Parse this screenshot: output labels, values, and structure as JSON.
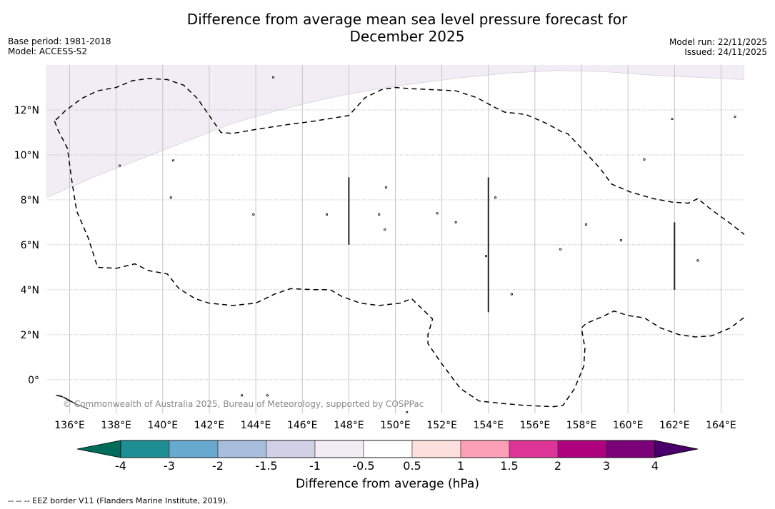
{
  "header": {
    "title_line1": "Difference from average mean sea level pressure forecast for",
    "title_line2": "December 2025",
    "base_period": "Base period: 1981-2018",
    "model": "Model: ACCESS-S2",
    "model_run": "Model run: 22/11/2025",
    "issued": "Issued: 24/11/2025"
  },
  "map": {
    "extent": {
      "lon_min": 135.0,
      "lon_max": 165.0,
      "lat_min": -1.5,
      "lat_max": 14.0
    },
    "lon_ticks": [
      136,
      138,
      140,
      142,
      144,
      146,
      148,
      150,
      152,
      154,
      156,
      158,
      160,
      162,
      164
    ],
    "lon_tick_labels": [
      "136°E",
      "138°E",
      "140°E",
      "142°E",
      "144°E",
      "146°E",
      "148°E",
      "150°E",
      "152°E",
      "154°E",
      "156°E",
      "158°E",
      "160°E",
      "162°E",
      "164°E"
    ],
    "lat_ticks": [
      0,
      2,
      4,
      6,
      8,
      10,
      12
    ],
    "lat_tick_labels": [
      "0°",
      "2°N",
      "4°N",
      "6°N",
      "8°N",
      "10°N",
      "12°N"
    ],
    "shaded_region": {
      "category": "-1 to -0.5",
      "color": "#f2edf4",
      "boundary_lonlat": [
        [
          135.0,
          8.1
        ],
        [
          137.0,
          9.0
        ],
        [
          139.0,
          9.8
        ],
        [
          141.0,
          10.6
        ],
        [
          143.0,
          11.4
        ],
        [
          145.0,
          12.0
        ],
        [
          147.0,
          12.5
        ],
        [
          149.0,
          12.9
        ],
        [
          151.0,
          13.2
        ],
        [
          153.0,
          13.45
        ],
        [
          155.0,
          13.65
        ],
        [
          157.0,
          13.75
        ],
        [
          159.0,
          13.7
        ],
        [
          161.0,
          13.55
        ],
        [
          163.0,
          13.45
        ],
        [
          165.0,
          13.35
        ]
      ]
    },
    "eez_border_lonlat": [
      [
        135.35,
        11.5
      ],
      [
        135.5,
        11.1
      ],
      [
        135.9,
        10.3
      ],
      [
        136.1,
        8.8
      ],
      [
        136.3,
        7.5
      ],
      [
        136.8,
        6.3
      ],
      [
        137.2,
        5.0
      ],
      [
        138.0,
        4.95
      ],
      [
        138.8,
        5.15
      ],
      [
        139.4,
        4.85
      ],
      [
        140.2,
        4.7
      ],
      [
        140.7,
        4.05
      ],
      [
        141.4,
        3.6
      ],
      [
        142.0,
        3.4
      ],
      [
        143.0,
        3.3
      ],
      [
        144.0,
        3.4
      ],
      [
        144.8,
        3.8
      ],
      [
        145.5,
        4.05
      ],
      [
        146.5,
        4.0
      ],
      [
        147.2,
        4.0
      ],
      [
        147.7,
        3.7
      ],
      [
        148.5,
        3.4
      ],
      [
        149.3,
        3.3
      ],
      [
        150.2,
        3.4
      ],
      [
        150.7,
        3.6
      ],
      [
        151.6,
        2.7
      ],
      [
        151.4,
        2.0
      ],
      [
        151.4,
        1.6
      ],
      [
        152.0,
        0.7
      ],
      [
        152.8,
        -0.4
      ],
      [
        153.6,
        -0.95
      ],
      [
        154.5,
        -1.05
      ],
      [
        155.6,
        -1.15
      ],
      [
        156.8,
        -1.2
      ],
      [
        157.2,
        -1.15
      ],
      [
        157.7,
        -0.4
      ],
      [
        158.1,
        0.6
      ],
      [
        158.15,
        1.4
      ],
      [
        158.0,
        2.3
      ],
      [
        158.2,
        2.5
      ],
      [
        158.9,
        2.8
      ],
      [
        159.4,
        3.05
      ],
      [
        160.0,
        2.85
      ],
      [
        160.7,
        2.75
      ],
      [
        161.4,
        2.3
      ],
      [
        162.2,
        2.0
      ],
      [
        162.9,
        1.9
      ],
      [
        163.6,
        1.95
      ],
      [
        164.4,
        2.3
      ],
      [
        165.1,
        2.85
      ],
      [
        165.45,
        3.25
      ],
      [
        165.35,
        5.0
      ],
      [
        165.2,
        6.3
      ],
      [
        164.4,
        6.95
      ],
      [
        163.6,
        7.55
      ],
      [
        163.0,
        8.05
      ],
      [
        162.6,
        7.85
      ],
      [
        161.9,
        7.9
      ],
      [
        161.1,
        8.05
      ],
      [
        160.1,
        8.35
      ],
      [
        159.3,
        8.7
      ],
      [
        158.8,
        9.4
      ],
      [
        158.0,
        10.3
      ],
      [
        157.4,
        10.95
      ],
      [
        157.2,
        11.0
      ],
      [
        156.5,
        11.4
      ],
      [
        155.6,
        11.8
      ],
      [
        154.7,
        11.9
      ],
      [
        154.3,
        12.1
      ],
      [
        153.5,
        12.55
      ],
      [
        152.6,
        12.85
      ],
      [
        151.6,
        12.9
      ],
      [
        150.6,
        12.95
      ],
      [
        150.0,
        13.0
      ],
      [
        149.4,
        12.9
      ],
      [
        148.7,
        12.55
      ],
      [
        148.0,
        11.75
      ],
      [
        147.7,
        11.7
      ],
      [
        146.5,
        11.5
      ],
      [
        145.4,
        11.35
      ],
      [
        144.1,
        11.15
      ],
      [
        143.0,
        10.95
      ],
      [
        142.5,
        11.0
      ],
      [
        142.1,
        11.6
      ],
      [
        141.5,
        12.5
      ],
      [
        140.9,
        13.1
      ],
      [
        140.2,
        13.35
      ],
      [
        139.4,
        13.4
      ],
      [
        138.7,
        13.3
      ],
      [
        138.0,
        13.0
      ],
      [
        137.2,
        12.85
      ],
      [
        136.5,
        12.5
      ],
      [
        135.8,
        11.95
      ],
      [
        135.35,
        11.5
      ]
    ],
    "section_lines_lonlat": [
      [
        [
          148.0,
          6.0
        ],
        [
          148.0,
          9.0
        ]
      ],
      [
        [
          154.0,
          3.0
        ],
        [
          154.0,
          9.0
        ]
      ],
      [
        [
          162.0,
          4.0
        ],
        [
          162.0,
          7.0
        ]
      ]
    ],
    "islands_lonlat": [
      [
        144.75,
        13.45
      ],
      [
        138.15,
        9.52
      ],
      [
        140.45,
        9.75
      ],
      [
        140.35,
        8.1
      ],
      [
        143.9,
        7.35
      ],
      [
        147.05,
        7.35
      ],
      [
        149.6,
        8.55
      ],
      [
        149.3,
        7.35
      ],
      [
        149.55,
        6.68
      ],
      [
        151.8,
        7.4
      ],
      [
        152.6,
        7.0
      ],
      [
        153.9,
        5.5
      ],
      [
        154.3,
        8.1
      ],
      [
        157.1,
        5.8
      ],
      [
        158.2,
        6.9
      ],
      [
        159.7,
        6.2
      ],
      [
        160.7,
        9.8
      ],
      [
        161.9,
        11.6
      ],
      [
        163.0,
        5.3
      ],
      [
        164.6,
        11.7
      ],
      [
        155.0,
        3.8
      ],
      [
        144.5,
        -0.7
      ],
      [
        143.4,
        -0.7
      ],
      [
        150.5,
        -1.45
      ]
    ],
    "land_outline_lonlat": [
      [
        135.4,
        -0.7
      ],
      [
        135.8,
        -0.8
      ],
      [
        136.3,
        -1.1
      ],
      [
        136.8,
        -1.3
      ],
      [
        136.3,
        -1.1
      ],
      [
        135.9,
        -0.9
      ],
      [
        135.6,
        -0.7
      ],
      [
        135.4,
        -0.7
      ]
    ],
    "copyright": "© Commonwealth of Australia 2025, Bureau of Meteorology, supported by COSPPac"
  },
  "colorbar": {
    "title": "Difference from average (hPa)",
    "boundaries": [
      -4,
      -3,
      -2,
      -1.5,
      -1,
      -0.5,
      0.5,
      1,
      1.5,
      2,
      3,
      4
    ],
    "tick_labels": [
      "-4",
      "-3",
      "-2",
      "-1.5",
      "-1",
      "-0.5",
      "0.5",
      "1",
      "1.5",
      "2",
      "3",
      "4"
    ],
    "colors": [
      "#1d8e94",
      "#67a9cf",
      "#a6bddb",
      "#d0d1e6",
      "#f2edf4",
      "#ffffff",
      "#fde0dd",
      "#fa9fb5",
      "#dd3497",
      "#ae017e",
      "#7a0177"
    ],
    "under_color": "#016c59",
    "over_color": "#49006a"
  },
  "footnote": "--  --  -- EEZ border V11 (Flanders Marine Institute, 2019)."
}
